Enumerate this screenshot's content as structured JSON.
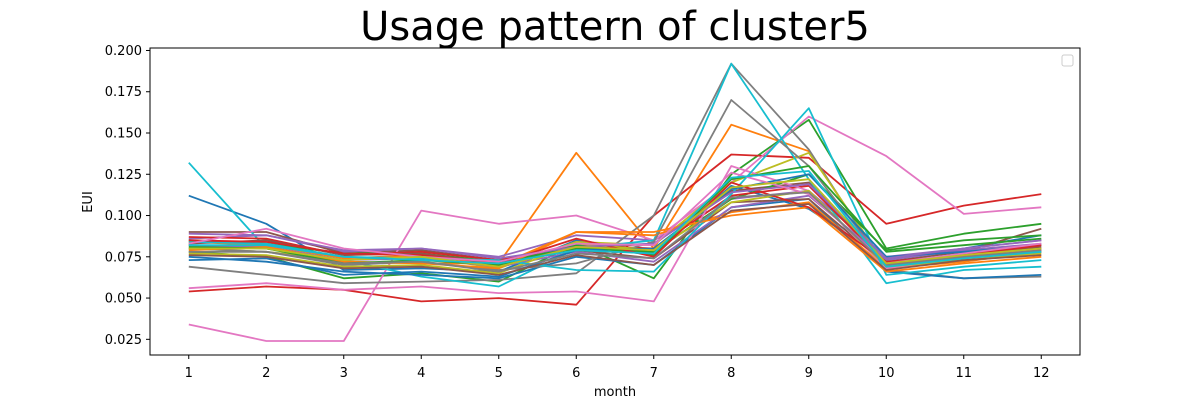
{
  "chart_data": {
    "type": "line",
    "title": "Usage pattern of cluster5",
    "xlabel": "month",
    "ylabel": "EUI",
    "x": [
      1,
      2,
      3,
      4,
      5,
      6,
      7,
      8,
      9,
      10,
      11,
      12
    ],
    "xticks": [
      "1",
      "2",
      "3",
      "4",
      "5",
      "6",
      "7",
      "8",
      "9",
      "10",
      "11",
      "12"
    ],
    "xlim": [
      0.5,
      12.5
    ],
    "yticks": [
      "0.025",
      "0.050",
      "0.075",
      "0.100",
      "0.125",
      "0.150",
      "0.175",
      "0.200"
    ],
    "ylim": [
      0.0155,
      0.2015
    ],
    "grid": false,
    "legend": {
      "placement": "upper right",
      "entries": []
    },
    "series": [
      {
        "color": "#1f77b4",
        "values": [
          0.112,
          0.095,
          0.067,
          0.068,
          0.066,
          0.085,
          0.077,
          0.118,
          0.104,
          0.073,
          0.08,
          0.088
        ]
      },
      {
        "color": "#ff7f0e",
        "values": [
          0.082,
          0.08,
          0.072,
          0.071,
          0.071,
          0.138,
          0.08,
          0.155,
          0.139,
          0.068,
          0.075,
          0.08
        ]
      },
      {
        "color": "#2ca02c",
        "values": [
          0.078,
          0.075,
          0.062,
          0.065,
          0.06,
          0.083,
          0.062,
          0.125,
          0.158,
          0.08,
          0.089,
          0.095
        ]
      },
      {
        "color": "#d62728",
        "values": [
          0.054,
          0.057,
          0.055,
          0.048,
          0.05,
          0.046,
          0.1,
          0.137,
          0.135,
          0.095,
          0.106,
          0.113
        ]
      },
      {
        "color": "#9467bd",
        "values": [
          0.086,
          0.088,
          0.078,
          0.08,
          0.075,
          0.088,
          0.085,
          0.11,
          0.115,
          0.075,
          0.08,
          0.085
        ]
      },
      {
        "color": "#8c564b",
        "values": [
          0.09,
          0.09,
          0.077,
          0.079,
          0.073,
          0.08,
          0.083,
          0.115,
          0.12,
          0.072,
          0.078,
          0.092
        ]
      },
      {
        "color": "#e377c2",
        "values": [
          0.034,
          0.024,
          0.024,
          0.103,
          0.095,
          0.1,
          0.085,
          0.12,
          0.16,
          0.136,
          0.101,
          0.105
        ]
      },
      {
        "color": "#7f7f7f",
        "values": [
          0.069,
          0.064,
          0.059,
          0.06,
          0.061,
          0.065,
          0.1,
          0.192,
          0.14,
          0.067,
          0.062,
          0.063
        ]
      },
      {
        "color": "#bcbd22",
        "values": [
          0.08,
          0.078,
          0.073,
          0.075,
          0.068,
          0.084,
          0.082,
          0.12,
          0.138,
          0.07,
          0.076,
          0.08
        ]
      },
      {
        "color": "#17becf",
        "values": [
          0.132,
          0.08,
          0.073,
          0.063,
          0.057,
          0.08,
          0.085,
          0.192,
          0.122,
          0.059,
          0.067,
          0.069
        ]
      },
      {
        "color": "#1f77b4",
        "values": [
          0.075,
          0.072,
          0.066,
          0.064,
          0.062,
          0.075,
          0.07,
          0.105,
          0.11,
          0.066,
          0.062,
          0.064
        ]
      },
      {
        "color": "#ff7f0e",
        "values": [
          0.084,
          0.082,
          0.074,
          0.076,
          0.07,
          0.09,
          0.088,
          0.102,
          0.108,
          0.068,
          0.072,
          0.078
        ]
      },
      {
        "color": "#2ca02c",
        "values": [
          0.085,
          0.083,
          0.077,
          0.077,
          0.072,
          0.08,
          0.078,
          0.11,
          0.125,
          0.079,
          0.085,
          0.088
        ]
      },
      {
        "color": "#d62728",
        "values": [
          0.087,
          0.086,
          0.076,
          0.078,
          0.073,
          0.082,
          0.08,
          0.112,
          0.118,
          0.071,
          0.074,
          0.079
        ]
      },
      {
        "color": "#9467bd",
        "values": [
          0.082,
          0.081,
          0.073,
          0.074,
          0.069,
          0.078,
          0.072,
          0.105,
          0.112,
          0.073,
          0.079,
          0.083
        ]
      },
      {
        "color": "#8c564b",
        "values": [
          0.083,
          0.085,
          0.076,
          0.077,
          0.071,
          0.079,
          0.074,
          0.108,
          0.11,
          0.07,
          0.077,
          0.081
        ]
      },
      {
        "color": "#e377c2",
        "values": [
          0.056,
          0.059,
          0.055,
          0.057,
          0.053,
          0.054,
          0.048,
          0.13,
          0.115,
          0.068,
          0.074,
          0.08
        ]
      },
      {
        "color": "#7f7f7f",
        "values": [
          0.08,
          0.078,
          0.07,
          0.072,
          0.067,
          0.071,
          0.084,
          0.17,
          0.13,
          0.07,
          0.074,
          0.078
        ]
      },
      {
        "color": "#bcbd22",
        "values": [
          0.077,
          0.076,
          0.069,
          0.07,
          0.065,
          0.083,
          0.079,
          0.108,
          0.115,
          0.069,
          0.073,
          0.077
        ]
      },
      {
        "color": "#17becf",
        "values": [
          0.084,
          0.083,
          0.075,
          0.074,
          0.073,
          0.067,
          0.066,
          0.113,
          0.165,
          0.064,
          0.069,
          0.073
        ]
      },
      {
        "color": "#1f77b4",
        "values": [
          0.073,
          0.074,
          0.064,
          0.066,
          0.063,
          0.079,
          0.08,
          0.116,
          0.125,
          0.075,
          0.078,
          0.082
        ]
      },
      {
        "color": "#ff7f0e",
        "values": [
          0.079,
          0.081,
          0.072,
          0.071,
          0.068,
          0.09,
          0.09,
          0.1,
          0.105,
          0.066,
          0.071,
          0.075
        ]
      },
      {
        "color": "#2ca02c",
        "values": [
          0.081,
          0.08,
          0.071,
          0.073,
          0.07,
          0.082,
          0.076,
          0.122,
          0.13,
          0.078,
          0.082,
          0.086
        ]
      },
      {
        "color": "#d62728",
        "values": [
          0.085,
          0.084,
          0.077,
          0.076,
          0.071,
          0.086,
          0.075,
          0.12,
          0.105,
          0.072,
          0.076,
          0.082
        ]
      },
      {
        "color": "#9467bd",
        "values": [
          0.089,
          0.088,
          0.079,
          0.08,
          0.074,
          0.081,
          0.083,
          0.114,
          0.119,
          0.074,
          0.08,
          0.085
        ]
      },
      {
        "color": "#8c564b",
        "values": [
          0.076,
          0.075,
          0.068,
          0.069,
          0.064,
          0.076,
          0.07,
          0.103,
          0.107,
          0.067,
          0.073,
          0.076
        ]
      },
      {
        "color": "#e377c2",
        "values": [
          0.083,
          0.092,
          0.08,
          0.075,
          0.072,
          0.083,
          0.082,
          0.126,
          0.113,
          0.071,
          0.077,
          0.083
        ]
      },
      {
        "color": "#7f7f7f",
        "values": [
          0.078,
          0.078,
          0.071,
          0.072,
          0.066,
          0.077,
          0.074,
          0.111,
          0.114,
          0.07,
          0.075,
          0.079
        ]
      },
      {
        "color": "#bcbd22",
        "values": [
          0.08,
          0.08,
          0.073,
          0.075,
          0.069,
          0.081,
          0.079,
          0.117,
          0.122,
          0.071,
          0.076,
          0.08
        ]
      },
      {
        "color": "#17becf",
        "values": [
          0.082,
          0.082,
          0.075,
          0.073,
          0.071,
          0.079,
          0.077,
          0.123,
          0.127,
          0.069,
          0.074,
          0.078
        ]
      }
    ]
  }
}
